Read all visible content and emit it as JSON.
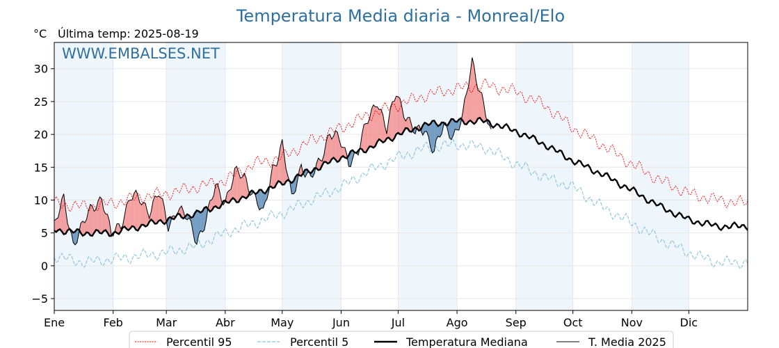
{
  "chart_data": {
    "type": "line",
    "title": "Temperatura Media diaria - Monreal/Elo",
    "subtitle": "Última temp: 2025-08-19",
    "ylabel": "°C",
    "watermark": "WWW.EMBALSES.NET",
    "ylim": [
      -6.8,
      34.0
    ],
    "xlim": [
      0,
      365
    ],
    "yticks": [
      -5,
      0,
      5,
      10,
      15,
      20,
      25,
      30
    ],
    "months": [
      "Ene",
      "Feb",
      "Mar",
      "Abr",
      "May",
      "Jun",
      "Jul",
      "Ago",
      "Sep",
      "Oct",
      "Nov",
      "Dic"
    ],
    "month_start_days": [
      0,
      31,
      59,
      90,
      120,
      151,
      181,
      212,
      243,
      273,
      304,
      334
    ],
    "legend": {
      "placement": "bottom-center",
      "entries": [
        "Percentil 95",
        "Percentil 5",
        "Temperatura Mediana",
        "T. Media 2025"
      ]
    },
    "colors": {
      "p95": "#ff0000",
      "p5": "#87c4dc",
      "median": "#000000",
      "t2025": "#000000",
      "above_fill": "#f08080",
      "below_fill": "#4a7fb0",
      "title": "#2e6f9e",
      "stripe": "#eef5fb"
    },
    "series_anchor_days": [
      0,
      15,
      31,
      45,
      59,
      75,
      90,
      105,
      120,
      135,
      151,
      166,
      181,
      196,
      212,
      227,
      243,
      258,
      273,
      288,
      304,
      319,
      334,
      349,
      365
    ],
    "series": [
      {
        "name": "Percentil 95",
        "values": [
          9.5,
          9.0,
          9.5,
          10.5,
          11.0,
          12.0,
          13.0,
          15.5,
          16.5,
          19.0,
          21.0,
          23.0,
          24.5,
          26.0,
          27.0,
          27.5,
          26.5,
          24.5,
          21.0,
          18.5,
          15.5,
          13.0,
          11.0,
          10.0,
          9.5
        ]
      },
      {
        "name": "Percentil 5",
        "values": [
          1.5,
          0.5,
          1.0,
          1.5,
          2.0,
          3.0,
          5.0,
          6.5,
          8.0,
          10.0,
          12.0,
          14.5,
          16.5,
          18.0,
          18.5,
          18.0,
          15.5,
          13.5,
          12.0,
          9.0,
          6.5,
          4.0,
          2.0,
          0.5,
          0.5
        ]
      },
      {
        "name": "Temperatura Mediana",
        "values": [
          5.5,
          5.0,
          5.0,
          6.0,
          7.0,
          8.0,
          9.5,
          11.0,
          12.5,
          14.5,
          16.5,
          18.0,
          20.0,
          21.5,
          22.0,
          22.0,
          20.5,
          18.5,
          16.0,
          14.0,
          11.5,
          9.0,
          7.0,
          6.0,
          6.0
        ]
      },
      {
        "name": "T. Media 2025",
        "anchor_days": [
          0,
          5,
          10,
          15,
          20,
          25,
          30,
          35,
          40,
          45,
          50,
          55,
          60,
          65,
          70,
          75,
          80,
          85,
          90,
          95,
          100,
          105,
          110,
          115,
          120,
          125,
          130,
          135,
          140,
          145,
          150,
          155,
          160,
          165,
          170,
          175,
          180,
          185,
          190,
          195,
          200,
          205,
          210,
          215,
          220,
          225,
          230
        ],
        "values": [
          6.0,
          10.0,
          3.5,
          6.0,
          9.0,
          10.5,
          4.5,
          6.5,
          10.5,
          10.0,
          8.5,
          11.0,
          6.0,
          9.0,
          7.0,
          4.0,
          7.0,
          12.0,
          10.0,
          14.0,
          13.5,
          11.0,
          7.5,
          15.0,
          18.5,
          10.0,
          15.5,
          13.0,
          16.0,
          20.5,
          19.0,
          16.0,
          17.5,
          22.0,
          25.5,
          20.5,
          26.5,
          23.0,
          20.0,
          21.0,
          17.5,
          21.0,
          20.0,
          22.5,
          31.0,
          26.0,
          19.5
        ]
      }
    ]
  }
}
